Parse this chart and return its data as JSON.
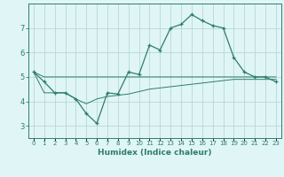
{
  "xlabel": "Humidex (Indice chaleur)",
  "hours": [
    0,
    1,
    2,
    3,
    4,
    5,
    6,
    7,
    8,
    9,
    10,
    11,
    12,
    13,
    14,
    15,
    16,
    17,
    18,
    19,
    20,
    21,
    22,
    23
  ],
  "main_line": [
    5.2,
    4.8,
    4.35,
    4.35,
    4.1,
    3.5,
    3.1,
    4.35,
    4.3,
    5.2,
    5.1,
    6.3,
    6.1,
    7.0,
    7.15,
    7.55,
    7.3,
    7.1,
    7.0,
    5.8,
    5.2,
    5.0,
    5.0,
    4.8
  ],
  "upper_line": [
    5.2,
    5.0,
    5.0,
    5.0,
    5.0,
    5.0,
    5.0,
    5.0,
    5.0,
    5.0,
    5.0,
    5.0,
    5.0,
    5.0,
    5.0,
    5.0,
    5.0,
    5.0,
    5.0,
    5.0,
    5.0,
    5.0,
    5.0,
    5.0
  ],
  "lower_line": [
    5.2,
    4.35,
    4.35,
    4.35,
    4.1,
    3.9,
    4.1,
    4.2,
    4.25,
    4.3,
    4.4,
    4.5,
    4.55,
    4.6,
    4.65,
    4.7,
    4.75,
    4.8,
    4.85,
    4.9,
    4.9,
    4.9,
    4.9,
    4.9
  ],
  "line_color": "#2e7d6e",
  "bg_color": "#e0f5f5",
  "grid_color": "#b8d8d8",
  "ylim": [
    2.5,
    8.0
  ],
  "yticks": [
    3,
    4,
    5,
    6,
    7
  ],
  "xlim": [
    -0.5,
    23.5
  ]
}
